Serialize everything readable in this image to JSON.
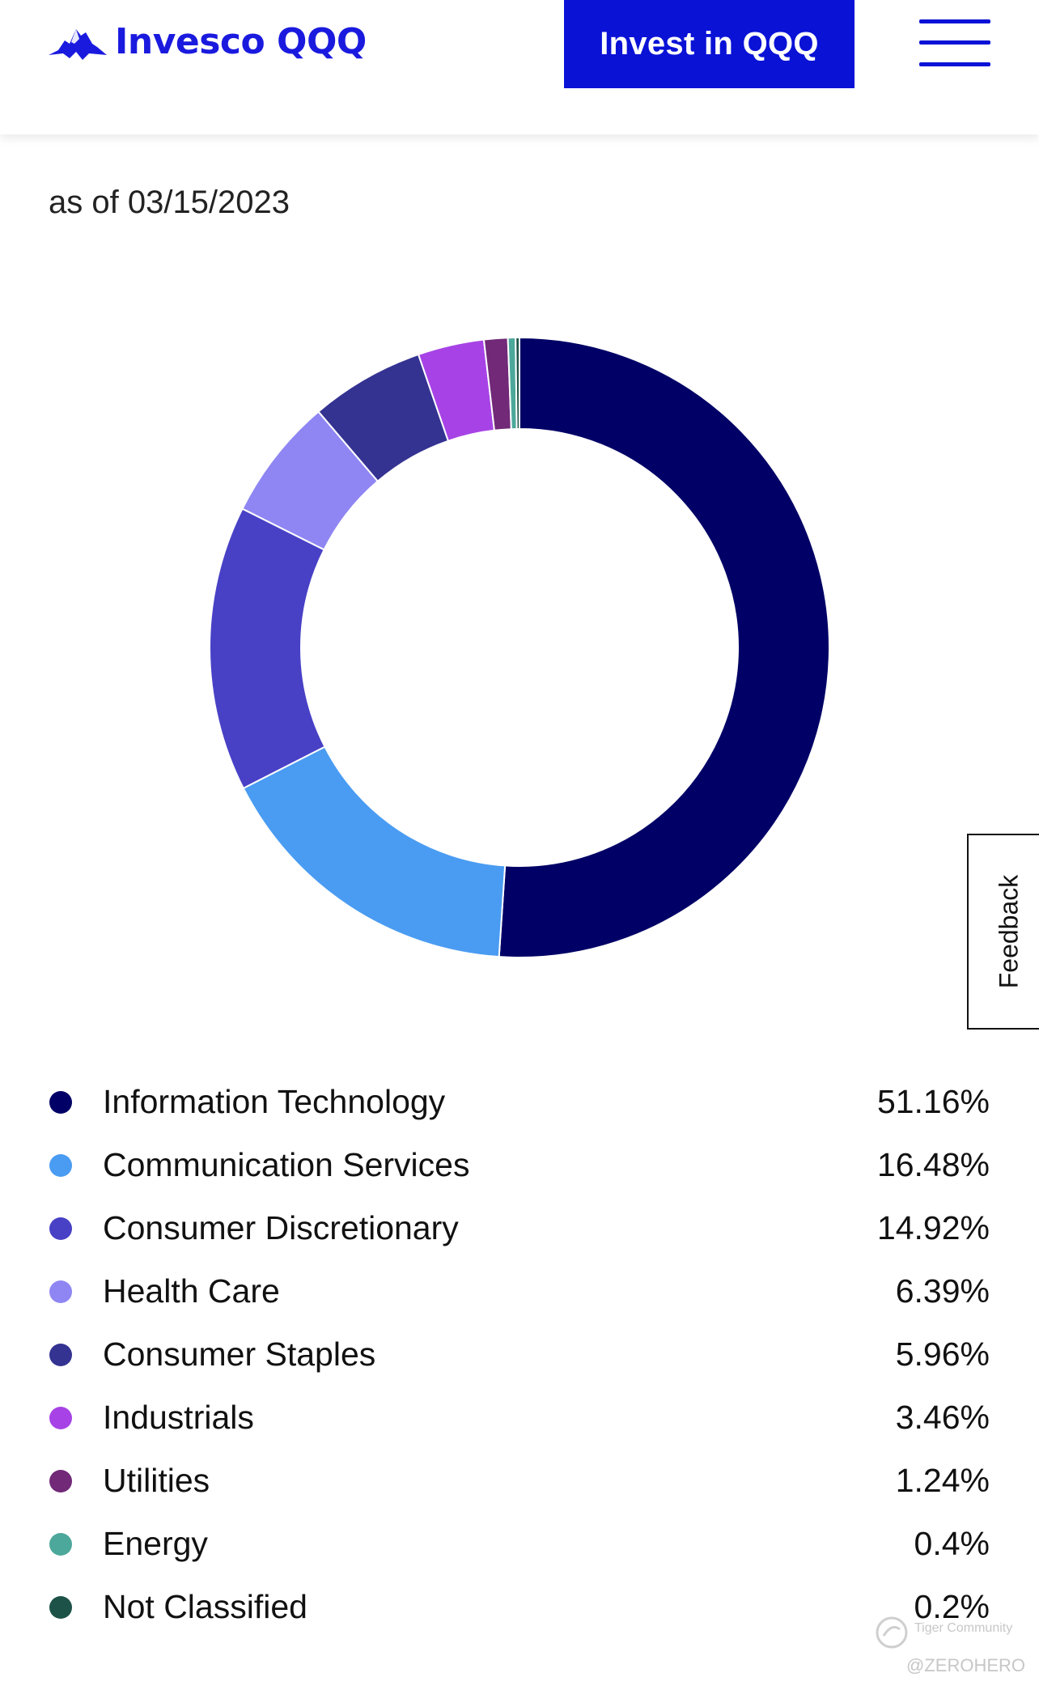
{
  "header": {
    "logo_text": "Invesco QQQ",
    "invest_button": "Invest in QQQ",
    "brand_color": "#0a12d6"
  },
  "as_of": "as of 03/15/2023",
  "feedback_tab": "Feedback",
  "watermark": {
    "community": "Tiger Community",
    "user": "@ZEROHERO"
  },
  "chart_data": {
    "type": "pie",
    "donut": true,
    "categories": [
      "Information Technology",
      "Communication Services",
      "Consumer Discretionary",
      "Health Care",
      "Consumer Staples",
      "Industrials",
      "Utilities",
      "Energy",
      "Not Classified"
    ],
    "values": [
      51.16,
      16.48,
      14.92,
      6.39,
      5.96,
      3.46,
      1.24,
      0.4,
      0.2
    ],
    "labels": [
      "51.16%",
      "16.48%",
      "14.92%",
      "6.39%",
      "5.96%",
      "3.46%",
      "1.24%",
      "0.4%",
      "0.2%"
    ],
    "colors": [
      "#000066",
      "#4a9cf2",
      "#4841c6",
      "#8f86f3",
      "#343392",
      "#a743e6",
      "#712978",
      "#4ca89a",
      "#1d5248"
    ]
  }
}
